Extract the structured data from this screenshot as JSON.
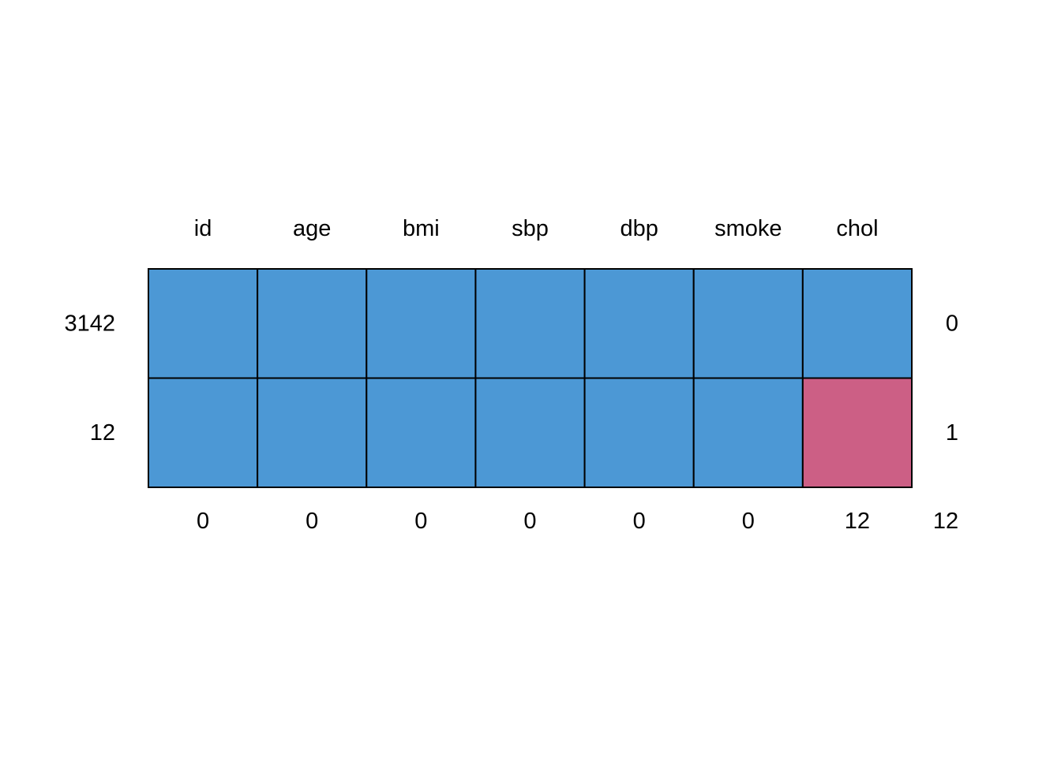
{
  "chart_data": {
    "type": "heatmap",
    "title": "",
    "xlabel": "",
    "ylabel": "",
    "columns": [
      "id",
      "age",
      "bmi",
      "sbp",
      "dbp",
      "smoke",
      "chol"
    ],
    "rows": [
      {
        "count": "3142",
        "missing_vars": "0",
        "pattern": [
          1,
          1,
          1,
          1,
          1,
          1,
          1
        ]
      },
      {
        "count": "12",
        "missing_vars": "1",
        "pattern": [
          1,
          1,
          1,
          1,
          1,
          1,
          0
        ]
      }
    ],
    "column_missing_totals": [
      "0",
      "0",
      "0",
      "0",
      "0",
      "0",
      "12"
    ],
    "total_missing": "12",
    "colors": {
      "observed": "#4C98D5",
      "missing": "#CC5F85",
      "border": "#000000"
    }
  }
}
